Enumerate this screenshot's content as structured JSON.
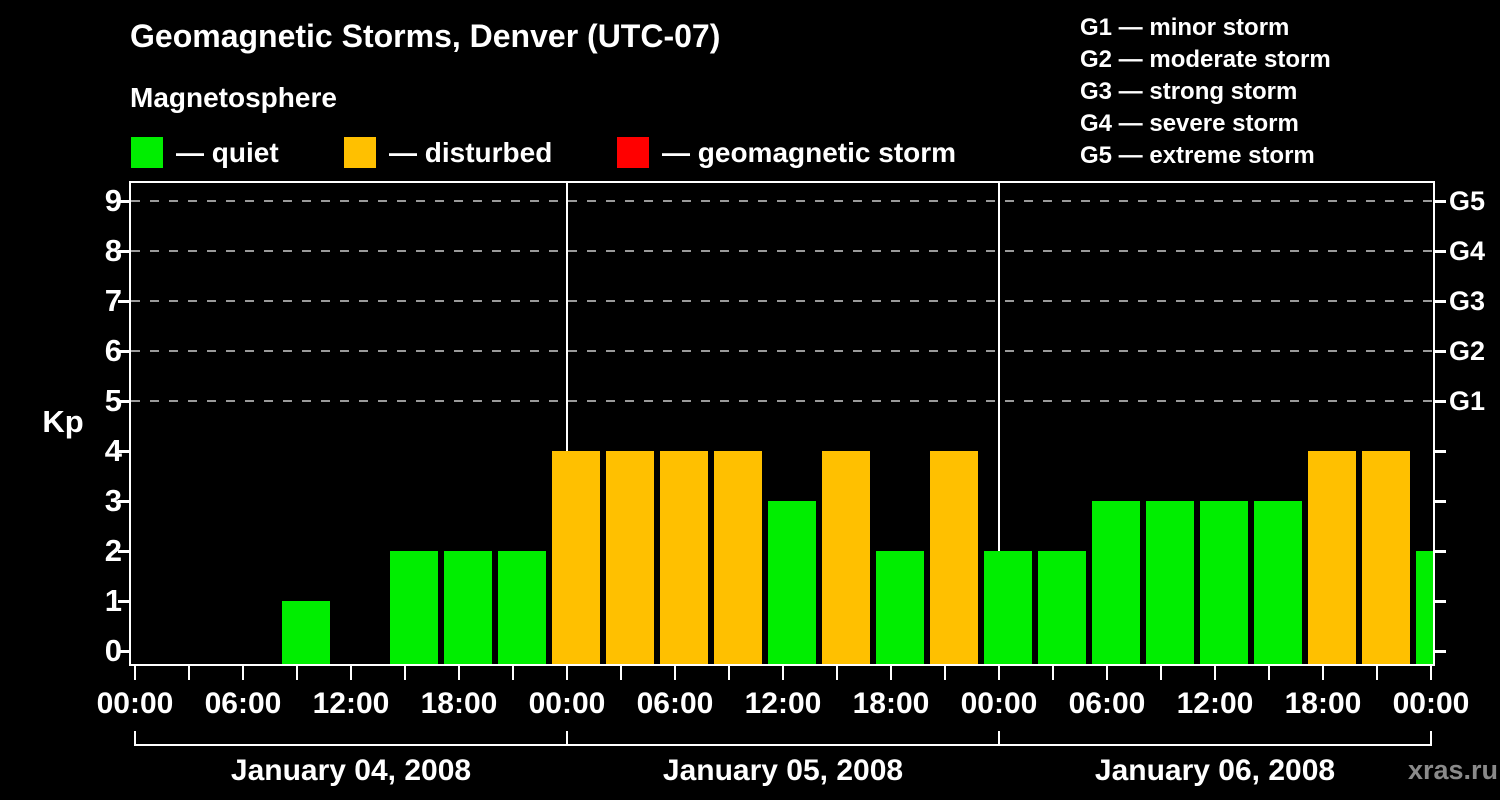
{
  "title": "Geomagnetic Storms, Denver (UTC-07)",
  "subtitle": "Magnetosphere",
  "legend": {
    "items": [
      {
        "label": "— quiet",
        "color": "#00ee00"
      },
      {
        "label": "— disturbed",
        "color": "#ffc000"
      },
      {
        "label": "— geomagnetic storm",
        "color": "#ff0000"
      }
    ]
  },
  "g_legend": [
    "G1 — minor storm",
    "G2 — moderate storm",
    "G3 — strong storm",
    "G4 — severe storm",
    "G5 — extreme storm"
  ],
  "watermark": "xras.ru",
  "chart_data": {
    "type": "bar",
    "title": "Geomagnetic Storms, Denver (UTC-07)",
    "xlabel": "",
    "ylabel": "Kp",
    "ylim": [
      0,
      9
    ],
    "y_ticks": [
      0,
      1,
      2,
      3,
      4,
      5,
      6,
      7,
      8,
      9
    ],
    "grid_levels": [
      5,
      6,
      7,
      8,
      9
    ],
    "grid_style": "dashed-gray",
    "legend_position": "top",
    "right_axis_labels": [
      {
        "label": "G1",
        "kp": 5
      },
      {
        "label": "G2",
        "kp": 6
      },
      {
        "label": "G3",
        "kp": 7
      },
      {
        "label": "G4",
        "kp": 8
      },
      {
        "label": "G5",
        "kp": 9
      }
    ],
    "interval_hours": 3,
    "time_tick_labels": [
      "00:00",
      "06:00",
      "12:00",
      "18:00",
      "00:00",
      "06:00",
      "12:00",
      "18:00",
      "00:00",
      "06:00",
      "12:00",
      "18:00",
      "00:00"
    ],
    "days": [
      {
        "date": "January 04, 2008",
        "kp": [
          0,
          0,
          0,
          1,
          0,
          2,
          2,
          2
        ]
      },
      {
        "date": "January 05, 2008",
        "kp": [
          4,
          4,
          4,
          4,
          3,
          4,
          2,
          4
        ]
      },
      {
        "date": "January 06, 2008",
        "kp": [
          2,
          2,
          3,
          3,
          3,
          3,
          4,
          4
        ]
      }
    ],
    "next_day_partial_kp": 2,
    "color_rule": {
      "quiet_max_kp": 3,
      "disturbed_kp": 4,
      "storm_min_kp": 5
    }
  }
}
